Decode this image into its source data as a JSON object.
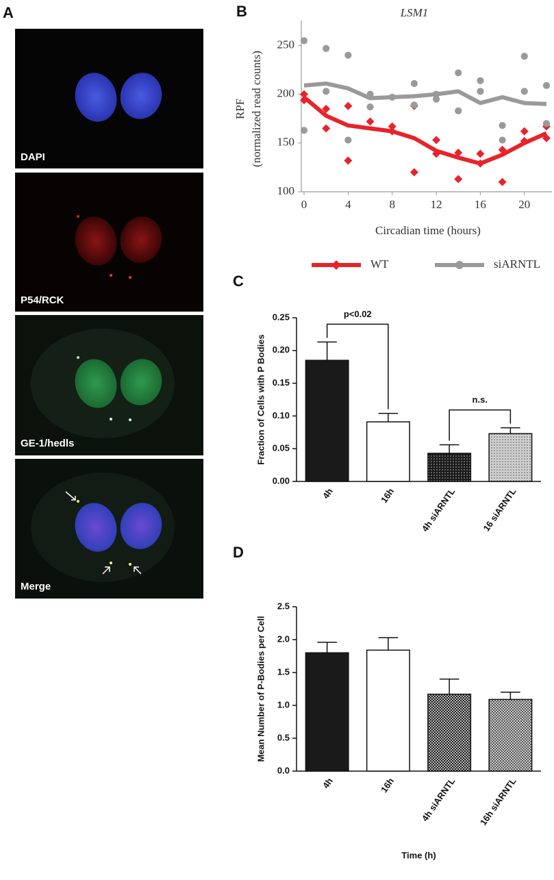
{
  "panel_a": {
    "label": "A",
    "images": [
      "DAPI",
      "P54/RCK",
      "GE-1/hedls",
      "Merge"
    ]
  },
  "chart_data": [
    {
      "type": "line",
      "panel_label": "B",
      "title": "LSM1",
      "x": [
        0,
        2,
        4,
        6,
        8,
        10,
        12,
        14,
        16,
        18,
        20,
        22
      ],
      "series": [
        {
          "name": "WT",
          "color": "#e8232a",
          "marker": "diamond",
          "values": [
            197,
            178,
            168,
            165,
            162,
            155,
            142,
            135,
            129,
            138,
            150,
            160
          ],
          "points": {
            "x": [
              0,
              0,
              2,
              2,
              4,
              4,
              6,
              8,
              8,
              10,
              10,
              12,
              12,
              14,
              14,
              16,
              16,
              18,
              18,
              20,
              20,
              22,
              22
            ],
            "y": [
              200,
              194,
              185,
              165,
              188,
              132,
              172,
              167,
              162,
              188,
              120,
              153,
              139,
              140,
              113,
              139,
              129,
              143,
              110,
              162,
              152,
              167,
              155
            ]
          }
        },
        {
          "name": "siARNTL",
          "color": "#9a9a9a",
          "marker": "circle",
          "values": [
            209,
            211,
            206,
            196,
            197,
            198,
            200,
            203,
            191,
            197,
            191,
            190
          ],
          "points": {
            "x": [
              0,
              0,
              2,
              2,
              4,
              4,
              6,
              6,
              8,
              10,
              10,
              12,
              12,
              14,
              14,
              16,
              16,
              18,
              18,
              20,
              20,
              22,
              22
            ],
            "y": [
              255,
              163,
              247,
              203,
              240,
              153,
              200,
              187,
              197,
              211,
              189,
              200,
              195,
              222,
              183,
              214,
              203,
              168,
              153,
              239,
              203,
              209,
              170
            ]
          }
        }
      ],
      "xlabel": "Circadian time (hours)",
      "ylabel": [
        "RPF",
        "(normalized read counts)"
      ],
      "xlim": [
        0,
        22.5
      ],
      "ylim": [
        100,
        270
      ],
      "xticks": [
        0,
        4,
        8,
        12,
        16,
        20
      ],
      "yticks": [
        100,
        150,
        200,
        250
      ]
    },
    {
      "type": "bar",
      "panel_label": "C",
      "categories": [
        "4h",
        "16h",
        "4h siARNTL",
        "16 siARNTL"
      ],
      "values": [
        0.185,
        0.091,
        0.043,
        0.073
      ],
      "errors": [
        0.028,
        0.013,
        0.013,
        0.009
      ],
      "colors": [
        "#1a1a1a",
        "#ffffff",
        "#1a1a1a",
        "#cfcfcf"
      ],
      "patterns": [
        "solid",
        "solid",
        "dots",
        "dots"
      ],
      "annotations": [
        "p<0.02",
        "n.s."
      ],
      "ylabel": "Fraction of Cells with P Bodies",
      "ylim": [
        0,
        0.25
      ],
      "yticks": [
        {
          "value": 0,
          "label": "0.00"
        },
        {
          "value": 0.05,
          "label": "0.05"
        },
        {
          "value": 0.1,
          "label": "0.10"
        },
        {
          "value": 0.15,
          "label": "0.15"
        },
        {
          "value": 0.2,
          "label": "0.20"
        },
        {
          "value": 0.25,
          "label": "0.25"
        }
      ]
    },
    {
      "type": "bar",
      "panel_label": "D",
      "categories": [
        "4h",
        "16h",
        "4h siARNTL",
        "16h siARNTL"
      ],
      "values": [
        1.8,
        1.84,
        1.17,
        1.09
      ],
      "errors": [
        0.16,
        0.19,
        0.23,
        0.11
      ],
      "colors": [
        "#1a1a1a",
        "#ffffff",
        "#1a1a1a",
        "#cfcfcf"
      ],
      "patterns": [
        "solid",
        "solid",
        "checker",
        "checker"
      ],
      "ylabel": "Mean Number of P-Bodies per Cell",
      "xlabel": "Time (h)",
      "ylim": [
        0,
        2.5
      ],
      "yticks": [
        {
          "value": 0,
          "label": "0.0"
        },
        {
          "value": 0.5,
          "label": "0.5"
        },
        {
          "value": 1,
          "label": "1.0"
        },
        {
          "value": 1.5,
          "label": "1.5"
        },
        {
          "value": 2,
          "label": "2.0"
        },
        {
          "value": 2.5,
          "label": "2.5"
        }
      ]
    }
  ]
}
